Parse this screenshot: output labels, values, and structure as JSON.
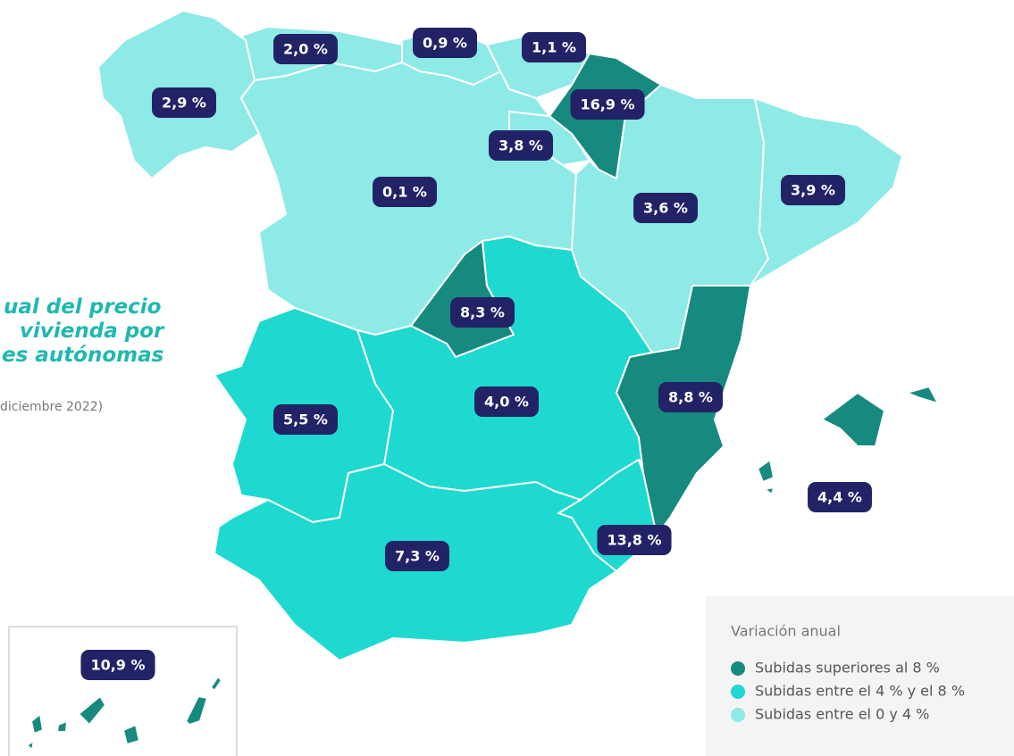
{
  "title": [
    "ual del precio",
    "vivienda por",
    "es autónomas"
  ],
  "subtitle": "diciembre 2022)",
  "regions": [
    {
      "label": "2,9 %",
      "color": "#8eeae6"
    },
    {
      "label": "2,0 %",
      "color": "#8eeae6"
    },
    {
      "label": "0,9 %",
      "color": "#8eeae6"
    },
    {
      "label": "1,1 %",
      "color": "#8eeae6"
    },
    {
      "label": "16,9 %",
      "color": "#178a80"
    },
    {
      "label": "3,8 %",
      "color": "#8eeae6"
    },
    {
      "label": "0,1 %",
      "color": "#8eeae6"
    },
    {
      "label": "3,6 %",
      "color": "#8eeae6"
    },
    {
      "label": "3,9 %",
      "color": "#8eeae6"
    },
    {
      "label": "8,3 %",
      "color": "#178a80"
    },
    {
      "label": "4,0 %",
      "color": "#1ed9d0"
    },
    {
      "label": "5,5 %",
      "color": "#1ed9d0"
    },
    {
      "label": "8,8 %",
      "color": "#178a80"
    },
    {
      "label": "4,4 %",
      "color": "#1ed9d0"
    },
    {
      "label": "7,3  %",
      "color": "#1ed9d0"
    },
    {
      "label": "13,8 %",
      "color": "#178a80"
    },
    {
      "label": "10,9 %",
      "color": "#178a80"
    }
  ],
  "legend": {
    "title": "Variación anual",
    "items": [
      {
        "label": "Subidas superiores al 8 %",
        "color": "#178a80"
      },
      {
        "label": "Subidas entre el 4 %  y el 8 %",
        "color": "#1ed9d0"
      },
      {
        "label": "Subidas entre el 0 y 4 %",
        "color": "#8eeae6"
      }
    ]
  }
}
